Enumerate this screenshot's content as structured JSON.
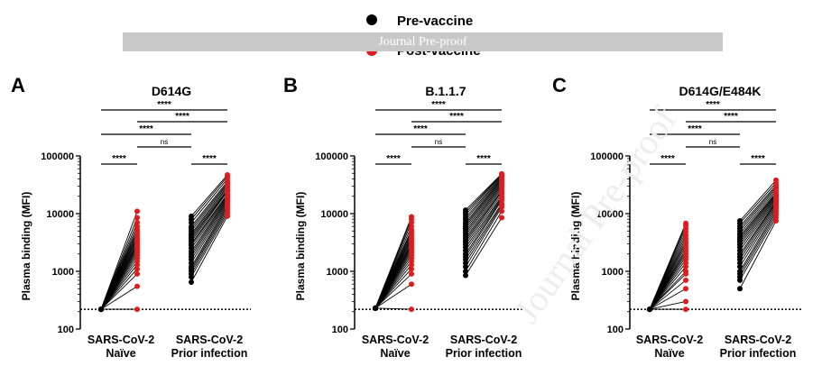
{
  "legend": {
    "placement": "top-center",
    "entries": [
      {
        "label": "Pre-vaccine",
        "color": "#000000"
      },
      {
        "label": "Post-vaccine",
        "color": "#e31a1c"
      }
    ]
  },
  "banner": {
    "text": "Journal Pre-proof"
  },
  "watermark": {
    "text": "Journal Pre-proof"
  },
  "chart_data": [
    {
      "type": "scatter",
      "panel": "A",
      "title": "D614G",
      "ylabel": "Plasma binding (MFI)",
      "yscale": "log",
      "ylim": [
        100,
        100000
      ],
      "yticks": [
        "100",
        "1000",
        "10000",
        "100000"
      ],
      "categories": [
        "SARS-CoV-2\nNaïve",
        "SARS-CoV-2\nPrior infection"
      ],
      "detection_limit": 220,
      "comparisons": [
        {
          "label": "****",
          "from": 0,
          "to": 1
        },
        {
          "label": "****",
          "from": 1,
          "to": 3
        },
        {
          "label": "****",
          "from": 0,
          "to": 2
        },
        {
          "label": "ns",
          "from": 1,
          "to": 2
        },
        {
          "label": "****",
          "from": 2,
          "to": 3
        },
        {
          "label": "****",
          "from": 0,
          "to": 3
        }
      ],
      "naive": {
        "pre": 220,
        "post": [
          220,
          550,
          900,
          1100,
          1300,
          1500,
          1700,
          1900,
          2100,
          2300,
          2500,
          2700,
          2900,
          3100,
          3400,
          3700,
          4000,
          4400,
          4800,
          5300,
          6000,
          7000,
          8500,
          11000
        ]
      },
      "prior": [
        [
          650,
          9000
        ],
        [
          800,
          10000
        ],
        [
          900,
          11000
        ],
        [
          1000,
          12000
        ],
        [
          1100,
          13000
        ],
        [
          1200,
          14000
        ],
        [
          1400,
          15000
        ],
        [
          1600,
          16000
        ],
        [
          1800,
          17000
        ],
        [
          2000,
          18000
        ],
        [
          2200,
          19000
        ],
        [
          2500,
          20000
        ],
        [
          2800,
          21000
        ],
        [
          3000,
          22000
        ],
        [
          3300,
          24000
        ],
        [
          3600,
          25000
        ],
        [
          3900,
          26000
        ],
        [
          4200,
          28000
        ],
        [
          4500,
          30000
        ],
        [
          5000,
          32000
        ],
        [
          5500,
          34000
        ],
        [
          6000,
          36000
        ],
        [
          7000,
          40000
        ],
        [
          8000,
          44000
        ],
        [
          9000,
          47000
        ]
      ]
    },
    {
      "type": "scatter",
      "panel": "B",
      "title": "B.1.1.7",
      "ylabel": "Plasma binding (MFI)",
      "yscale": "log",
      "ylim": [
        100,
        100000
      ],
      "yticks": [
        "100",
        "1000",
        "10000",
        "100000"
      ],
      "categories": [
        "SARS-CoV-2\nNaïve",
        "SARS-CoV-2\nPrior infection"
      ],
      "detection_limit": 220,
      "comparisons": [
        {
          "label": "****",
          "from": 0,
          "to": 1
        },
        {
          "label": "****",
          "from": 1,
          "to": 3
        },
        {
          "label": "****",
          "from": 0,
          "to": 2
        },
        {
          "label": "ns",
          "from": 1,
          "to": 2
        },
        {
          "label": "****",
          "from": 2,
          "to": 3
        },
        {
          "label": "****",
          "from": 0,
          "to": 3
        }
      ],
      "naive": {
        "pre": 230,
        "post": [
          220,
          600,
          900,
          1100,
          1300,
          1500,
          1700,
          1900,
          2100,
          2300,
          2500,
          2700,
          2900,
          3100,
          3400,
          3700,
          4000,
          4400,
          4800,
          5200,
          6000,
          7000,
          8000,
          8800
        ]
      },
      "prior": [
        [
          850,
          8500
        ],
        [
          1000,
          11000
        ],
        [
          1200,
          13000
        ],
        [
          1400,
          14000
        ],
        [
          1600,
          15000
        ],
        [
          1800,
          17000
        ],
        [
          2000,
          18000
        ],
        [
          2300,
          19000
        ],
        [
          2600,
          20000
        ],
        [
          2900,
          22000
        ],
        [
          3200,
          24000
        ],
        [
          3500,
          25000
        ],
        [
          3800,
          27000
        ],
        [
          4200,
          29000
        ],
        [
          4600,
          31000
        ],
        [
          5000,
          33000
        ],
        [
          5500,
          35000
        ],
        [
          6000,
          37000
        ],
        [
          6500,
          39000
        ],
        [
          7000,
          41000
        ],
        [
          7800,
          43000
        ],
        [
          8500,
          45000
        ],
        [
          9500,
          47000
        ],
        [
          10500,
          48000
        ],
        [
          11500,
          49000
        ]
      ]
    },
    {
      "type": "scatter",
      "panel": "C",
      "title": "D614G/E484K",
      "ylabel": "Plasma binding (MFI)",
      "yscale": "log",
      "ylim": [
        100,
        100000
      ],
      "yticks": [
        "100",
        "1000",
        "10000",
        "100000"
      ],
      "categories": [
        "SARS-CoV-2\nNaïve",
        "SARS-CoV-2\nPrior infection"
      ],
      "detection_limit": 220,
      "comparisons": [
        {
          "label": "****",
          "from": 0,
          "to": 1
        },
        {
          "label": "****",
          "from": 1,
          "to": 3
        },
        {
          "label": "****",
          "from": 0,
          "to": 2
        },
        {
          "label": "ns",
          "from": 1,
          "to": 2
        },
        {
          "label": "****",
          "from": 2,
          "to": 3
        },
        {
          "label": "****",
          "from": 0,
          "to": 3
        }
      ],
      "naive": {
        "pre": 220,
        "post": [
          220,
          300,
          500,
          700,
          900,
          1000,
          1200,
          1400,
          1600,
          1800,
          2000,
          2200,
          2400,
          2700,
          3000,
          3300,
          3700,
          4200,
          4800,
          5500,
          6200,
          6800
        ]
      },
      "prior": [
        [
          500,
          7500
        ],
        [
          700,
          8500
        ],
        [
          800,
          9500
        ],
        [
          900,
          10500
        ],
        [
          1000,
          11500
        ],
        [
          1200,
          12500
        ],
        [
          1400,
          13500
        ],
        [
          1600,
          14500
        ],
        [
          1800,
          15500
        ],
        [
          2000,
          16000
        ],
        [
          2300,
          17000
        ],
        [
          2600,
          18000
        ],
        [
          2900,
          19000
        ],
        [
          3200,
          20000
        ],
        [
          3500,
          21000
        ],
        [
          3800,
          22000
        ],
        [
          4100,
          23000
        ],
        [
          4500,
          25000
        ],
        [
          5000,
          27000
        ],
        [
          5500,
          29000
        ],
        [
          6000,
          31000
        ],
        [
          6800,
          34000
        ],
        [
          7500,
          38000
        ]
      ]
    }
  ]
}
